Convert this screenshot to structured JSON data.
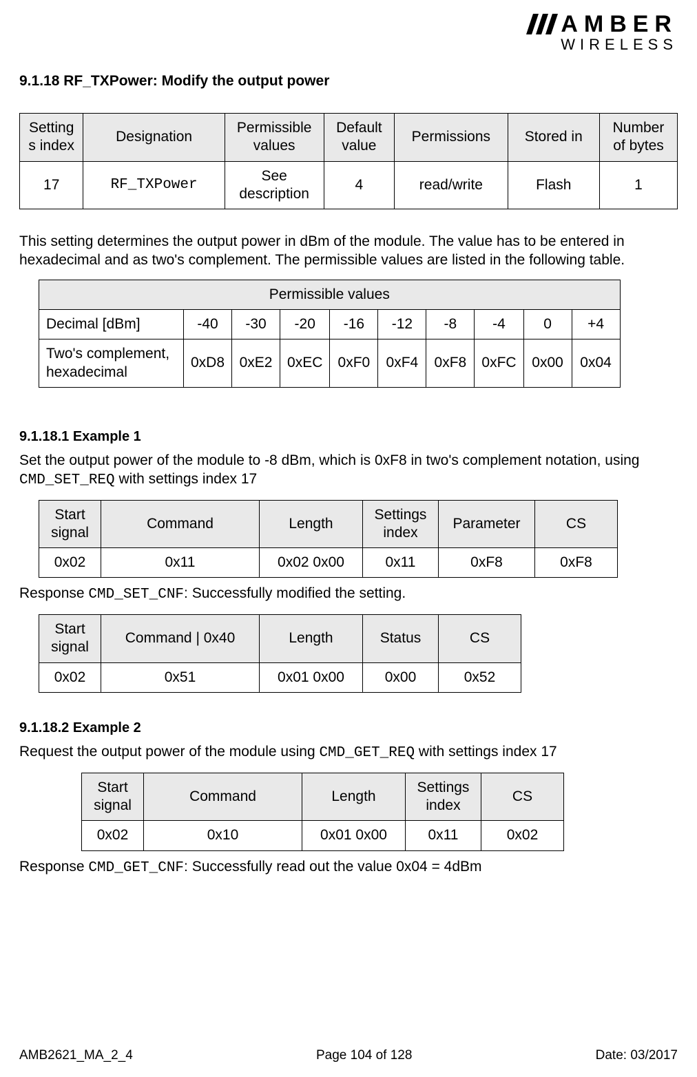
{
  "logo": {
    "line1": "AMBER",
    "line2": "WIRELESS"
  },
  "heading": "9.1.18 RF_TXPower: Modify the output power",
  "settings_table": {
    "headers": [
      "Setting\ns index",
      "Designation",
      "Permissible\nvalues",
      "Default\nvalue",
      "Permissions",
      "Stored in",
      "Number\nof bytes"
    ],
    "row": [
      "17",
      "RF_TXPower",
      "See\ndescription",
      "4",
      "read/write",
      "Flash",
      "1"
    ]
  },
  "intro": "This setting determines the output power in dBm of the module. The value has to be entered in hexadecimal and as two's complement. The permissible values are listed in the following table.",
  "perm_table": {
    "title": "Permissible values",
    "row1_label": "Decimal [dBm]",
    "row1": [
      "-40",
      "-30",
      "-20",
      "-16",
      "-12",
      "-8",
      "-4",
      "0",
      "+4"
    ],
    "row2_label": "Two's complement,\nhexadecimal",
    "row2": [
      "0xD8",
      "0xE2",
      "0xEC",
      "0xF0",
      "0xF4",
      "0xF8",
      "0xFC",
      "0x00",
      "0x04"
    ]
  },
  "ex1": {
    "heading": "9.1.18.1  Example 1",
    "text_a": "Set the output power of the module to -8 dBm, which is 0xF8 in two's complement notation, using ",
    "cmd": " CMD_SET_REQ",
    "text_b": " with settings index 17",
    "req_headers": [
      "Start\nsignal",
      "Command",
      "Length",
      "Settings\nindex",
      "Parameter",
      "CS"
    ],
    "req_row": [
      "0x02",
      "0x11",
      "0x02 0x00",
      "0x11",
      "0xF8",
      "0xF8"
    ],
    "resp_text_a": "Response ",
    "resp_cmd": "CMD_SET_CNF",
    "resp_text_b": ": Successfully modified the setting.",
    "resp_headers": [
      "Start\nsignal",
      "Command | 0x40",
      "Length",
      "Status",
      "CS"
    ],
    "resp_row": [
      "0x02",
      "0x51",
      "0x01 0x00",
      "0x00",
      "0x52"
    ]
  },
  "ex2": {
    "heading": "9.1.18.2  Example 2",
    "text_a": "Request the output power of the module using ",
    "cmd": " CMD_GET_REQ",
    "text_b": " with settings index 17",
    "req_headers": [
      "Start\nsignal",
      "Command",
      "Length",
      "Settings\nindex",
      "CS"
    ],
    "req_row": [
      "0x02",
      "0x10",
      "0x01 0x00",
      "0x11",
      "0x02"
    ],
    "resp_text_a": "Response ",
    "resp_cmd": "CMD_GET_CNF",
    "resp_text_b": ": Successfully read out the value 0x04 = 4dBm"
  },
  "footer": {
    "left": "AMB2621_MA_2_4",
    "center": "Page 104 of 128",
    "right": "Date: 03/2017"
  },
  "colors": {
    "header_bg": "#e9e9e9",
    "border": "#000000",
    "text": "#000000",
    "background": "#ffffff"
  },
  "col_widths": {
    "settings": [
      "90px",
      "200px",
      "140px",
      "100px",
      "160px",
      "130px",
      "110px"
    ],
    "perm_label": "210px",
    "perm_cell": "78px",
    "ex1_req": [
      "90px",
      "230px",
      "150px",
      "110px",
      "140px",
      "120px"
    ],
    "ex1_resp": [
      "90px",
      "230px",
      "150px",
      "110px",
      "120px"
    ],
    "ex2_req": [
      "90px",
      "230px",
      "150px",
      "110px",
      "120px"
    ]
  }
}
